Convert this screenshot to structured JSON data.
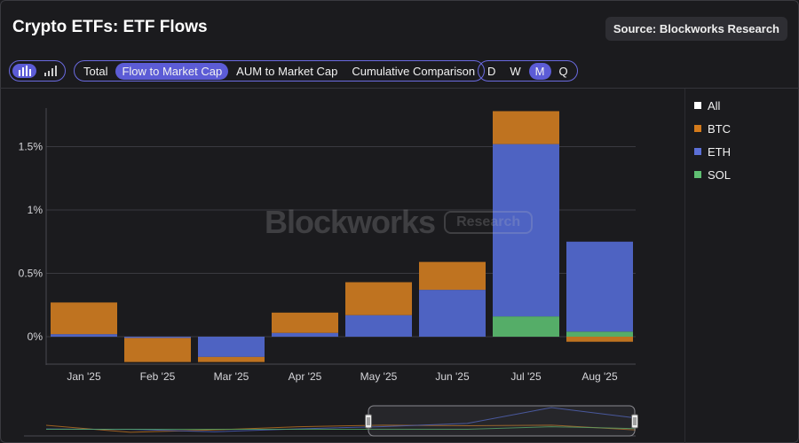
{
  "title": "Crypto ETFs: ETF Flows",
  "source": "Source: Blockworks Research",
  "toolbar": {
    "view_icons": [
      "bar-chart-icon",
      "line-bars-icon"
    ],
    "metrics": [
      "Total",
      "Flow to Market Cap",
      "AUM to Market Cap",
      "Cumulative Comparison"
    ],
    "active_metric": "Flow to Market Cap",
    "periods": [
      "D",
      "W",
      "M",
      "Q"
    ],
    "active_period": "M"
  },
  "watermark": {
    "main": "Blockworks",
    "badge": "Research"
  },
  "legend": [
    {
      "label": "All",
      "color": "#ffffff"
    },
    {
      "label": "BTC",
      "color": "#d37a1b"
    },
    {
      "label": "ETH",
      "color": "#5b6fd6"
    },
    {
      "label": "SOL",
      "color": "#5fbf72"
    }
  ],
  "chart_data": {
    "type": "bar",
    "stacked": true,
    "categories": [
      "Jan '25",
      "Feb '25",
      "Mar '25",
      "Apr '25",
      "May '25",
      "Jun '25",
      "Jul '25",
      "Aug '25"
    ],
    "series": [
      {
        "name": "BTC",
        "color": "#bf7320",
        "values": [
          0.25,
          -0.19,
          -0.04,
          0.16,
          0.26,
          0.22,
          0.26,
          -0.04
        ]
      },
      {
        "name": "ETH",
        "color": "#4e63c2",
        "values": [
          0.02,
          -0.01,
          -0.16,
          0.03,
          0.17,
          0.37,
          1.36,
          0.71
        ]
      },
      {
        "name": "SOL",
        "color": "#55ad68",
        "values": [
          0.0,
          0.0,
          0.0,
          0.0,
          0.0,
          0.0,
          0.16,
          0.04
        ]
      }
    ],
    "yticks": [
      0,
      0.5,
      1,
      1.5
    ],
    "ytick_labels": [
      "0%",
      "0.5%",
      "1%",
      "1.5%"
    ],
    "ylim": [
      -0.22,
      1.8
    ],
    "grid": true
  }
}
